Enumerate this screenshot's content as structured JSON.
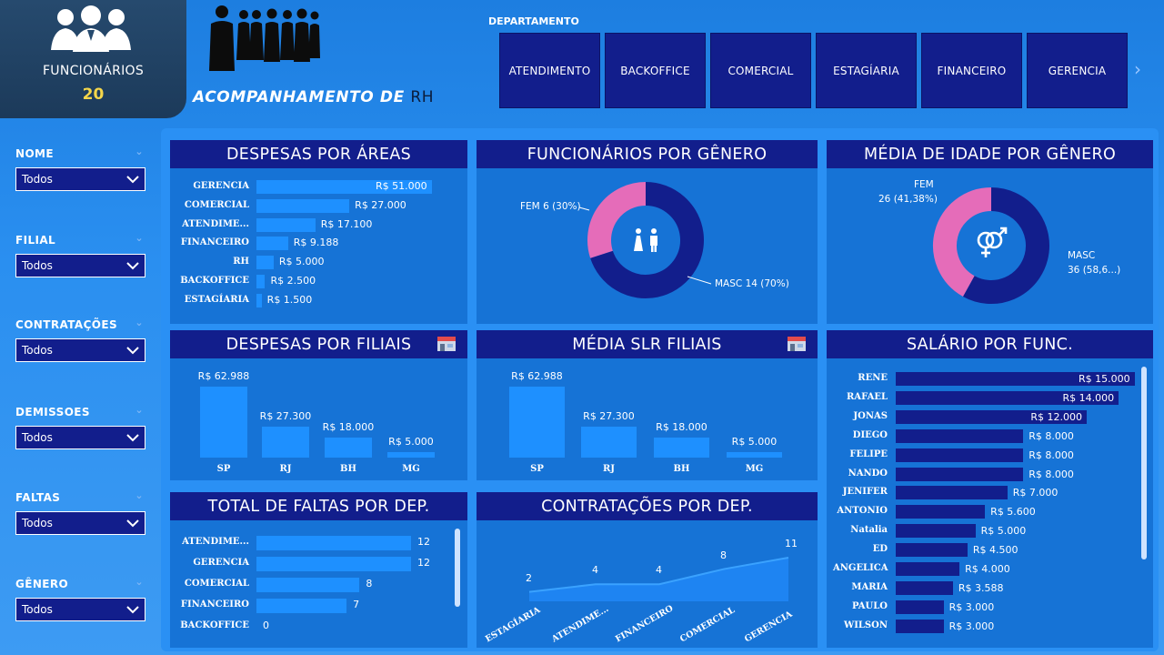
{
  "kpi": {
    "label": "FUNCIONÁRIOS",
    "value": "20"
  },
  "title": {
    "main": "ACOMPANHAMENTO DE ",
    "suffix": "RH"
  },
  "department": {
    "label": "DEPARTAMENTO",
    "items": [
      "ATENDIMENTO",
      "BACKOFFICE",
      "COMERCIAL",
      "ESTAGÍARIA",
      "FINANCEIRO",
      "GERENCIA"
    ]
  },
  "filters": [
    {
      "label": "NOME",
      "value": "Todos"
    },
    {
      "label": "FILIAL",
      "value": "Todos"
    },
    {
      "label": "CONTRATAÇÕES",
      "value": "Todos"
    },
    {
      "label": "DEMISSOES",
      "value": "Todos"
    },
    {
      "label": "FALTAS",
      "value": "Todos"
    },
    {
      "label": "GÊNERO",
      "value": "Todos"
    }
  ],
  "colors": {
    "navy": "#121e8c",
    "bar": "#1e90ff",
    "card": "#1673d6",
    "pink": "#e56cb9",
    "kpi_value": "#f5d64a"
  },
  "chart_data": [
    {
      "id": "areas",
      "type": "bar",
      "orientation": "horizontal",
      "title": "DESPESAS POR ÁREAS",
      "categories": [
        "GERENCIA",
        "COMERCIAL",
        "ATENDIME...",
        "FINANCEIRO",
        "RH",
        "BACKOFFICE",
        "ESTAGÍARIA"
      ],
      "values": [
        51000,
        27000,
        17100,
        9188,
        5000,
        2500,
        1500
      ],
      "labels": [
        "R$ 51.000",
        "R$ 27.000",
        "R$ 17.100",
        "R$ 9.188",
        "R$ 5.000",
        "R$ 2.500",
        "R$ 1.500"
      ]
    },
    {
      "id": "genero",
      "type": "pie",
      "title": "FUNCIONÁRIOS POR GÊNERO",
      "slices": [
        {
          "name": "FEM",
          "value": 6,
          "label": "FEM 6 (30%)"
        },
        {
          "name": "MASC",
          "value": 14,
          "label": "MASC 14 (70%)"
        }
      ]
    },
    {
      "id": "idade",
      "type": "pie",
      "title": "MÉDIA DE IDADE POR GÊNERO",
      "slices": [
        {
          "name": "FEM",
          "value": 26,
          "label": [
            "FEM",
            "26 (41,38%)"
          ]
        },
        {
          "name": "MASC",
          "value": 36,
          "label": [
            "MASC",
            "36 (58,6...)"
          ]
        }
      ]
    },
    {
      "id": "filiais",
      "type": "bar",
      "title": "DESPESAS POR FILIAIS",
      "categories": [
        "SP",
        "RJ",
        "BH",
        "MG"
      ],
      "values": [
        62988,
        27300,
        18000,
        5000
      ],
      "labels": [
        "R$ 62.988",
        "R$ 27.300",
        "R$ 18.000",
        "R$ 5.000"
      ]
    },
    {
      "id": "slr",
      "type": "bar",
      "title": "MÉDIA SLR FILIAIS",
      "categories": [
        "SP",
        "RJ",
        "BH",
        "MG"
      ],
      "values": [
        62988,
        27300,
        18000,
        5000
      ],
      "labels": [
        "R$ 62.988",
        "R$ 27.300",
        "R$ 18.000",
        "R$ 5.000"
      ]
    },
    {
      "id": "salario",
      "type": "bar",
      "orientation": "horizontal",
      "title": "SALÁRIO POR FUNC.",
      "categories": [
        "RENE",
        "RAFAEL",
        "JONAS",
        "DIEGO",
        "FELIPE",
        "NANDO",
        "JENIFER",
        "ANTONIO",
        "Natalia",
        "ED",
        "ANGELICA",
        "MARIA",
        "PAULO",
        "WILSON"
      ],
      "values": [
        15000,
        14000,
        12000,
        8000,
        8000,
        8000,
        7000,
        5600,
        5000,
        4500,
        4000,
        3588,
        3000,
        3000
      ],
      "labels": [
        "R$ 15.000",
        "R$ 14.000",
        "R$ 12.000",
        "R$ 8.000",
        "R$ 8.000",
        "R$ 8.000",
        "R$ 7.000",
        "R$ 5.600",
        "R$ 5.000",
        "R$ 4.500",
        "R$ 4.000",
        "R$ 3.588",
        "R$ 3.000",
        "R$ 3.000"
      ]
    },
    {
      "id": "faltas",
      "type": "bar",
      "orientation": "horizontal",
      "title": "TOTAL DE FALTAS POR DEP.",
      "categories": [
        "ATENDIME...",
        "GERENCIA",
        "COMERCIAL",
        "FINANCEIRO",
        "BACKOFFICE"
      ],
      "values": [
        12,
        12,
        8,
        7,
        0
      ],
      "labels": [
        "12",
        "12",
        "8",
        "7",
        "0"
      ]
    },
    {
      "id": "contratacoes",
      "type": "area",
      "title": "CONTRATAÇÕES POR DEP.",
      "categories": [
        "ESTAGÍARIA",
        "ATENDIME...",
        "FINANCEIRO",
        "COMERCIAL",
        "GERENCIA"
      ],
      "values": [
        2,
        4,
        4,
        8,
        11
      ],
      "labels": [
        "2",
        "4",
        "4",
        "8",
        "11"
      ]
    }
  ]
}
